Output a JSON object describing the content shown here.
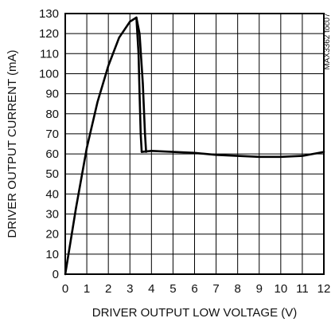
{
  "chart_data": {
    "type": "line",
    "title": "",
    "xlabel": "DRIVER OUTPUT LOW VOLTAGE (V)",
    "ylabel": "DRIVER OUTPUT CURRENT (mA)",
    "xlim": [
      0,
      12
    ],
    "ylim": [
      0,
      130
    ],
    "x_ticks": [
      0,
      1,
      2,
      3,
      4,
      5,
      6,
      7,
      8,
      9,
      10,
      11,
      12
    ],
    "y_ticks": [
      0,
      10,
      20,
      30,
      40,
      50,
      60,
      70,
      80,
      90,
      100,
      110,
      120,
      130
    ],
    "grid": true,
    "legend": "none",
    "annotation": "MAX3362 toc07",
    "line_color": "#000000",
    "series": [
      {
        "x": [
          0,
          0.5,
          1.0,
          1.5,
          2.0,
          2.5,
          3.0,
          3.3,
          3.45,
          3.6,
          3.7,
          3.75
        ],
        "y": [
          0,
          33,
          63,
          86,
          104,
          118,
          126,
          128,
          120,
          95,
          70,
          61
        ]
      },
      {
        "x": [
          3.3,
          3.4,
          3.45,
          3.5,
          3.55
        ],
        "y": [
          128,
          110,
          90,
          70,
          61
        ]
      },
      {
        "x": [
          3.55,
          4,
          5,
          6,
          7,
          8,
          9,
          10,
          11,
          12
        ],
        "y": [
          61,
          61.5,
          61,
          60.5,
          59.5,
          59,
          58.5,
          58.5,
          59,
          61
        ]
      }
    ]
  }
}
